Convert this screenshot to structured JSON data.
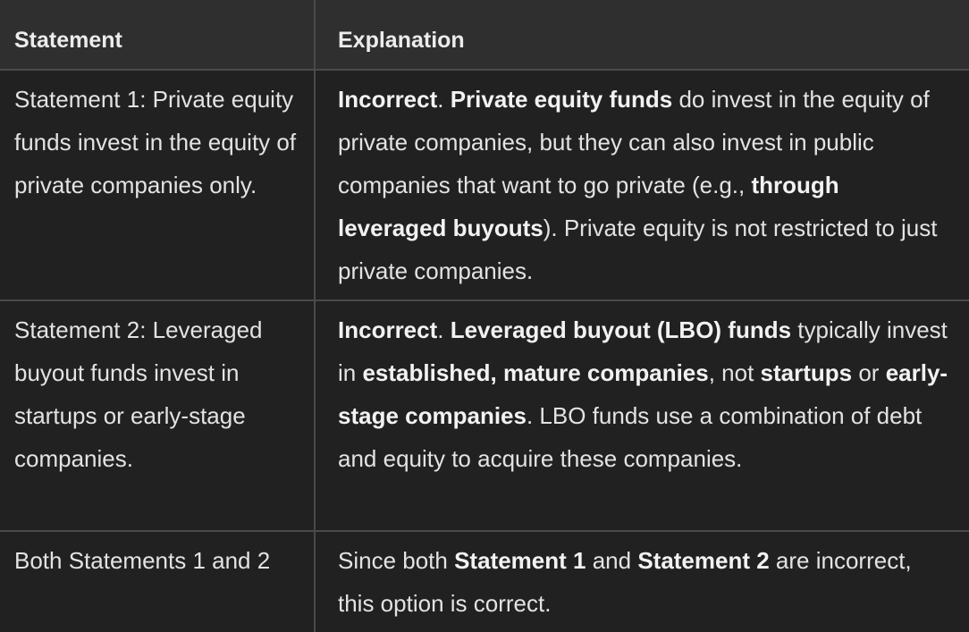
{
  "table": {
    "headers": [
      "Statement",
      "Explanation"
    ],
    "rows": [
      {
        "statement": "Statement 1: Private equity funds invest in the equity of private companies only.",
        "explanation": {
          "verdict": "Incorrect",
          "p1": ". ",
          "b1": "Private equity funds",
          "p2": " do invest in the equity of private companies, but they can also invest in public companies that want to go private (e.g., ",
          "b2": "through leveraged buyouts",
          "p3": "). Private equity is not restricted to just private companies."
        }
      },
      {
        "statement": "Statement 2: Leveraged buyout funds invest in startups or early-stage companies.",
        "explanation": {
          "verdict": "Incorrect",
          "p1": ". ",
          "b1": "Leveraged buyout (LBO) funds",
          "p2": " typically invest in ",
          "b2": "established, mature companies",
          "p3": ", not ",
          "b3": "startups",
          "p4": " or ",
          "b4": "early-stage companies",
          "p5": ". LBO funds use a combination of debt and equity to acquire these companies."
        }
      },
      {
        "statement": "Both Statements 1 and 2",
        "explanation": {
          "p1": "Since both ",
          "b1": "Statement 1",
          "p2": " and ",
          "b2": "Statement 2",
          "p3": " are incorrect, this option is correct."
        }
      }
    ]
  }
}
